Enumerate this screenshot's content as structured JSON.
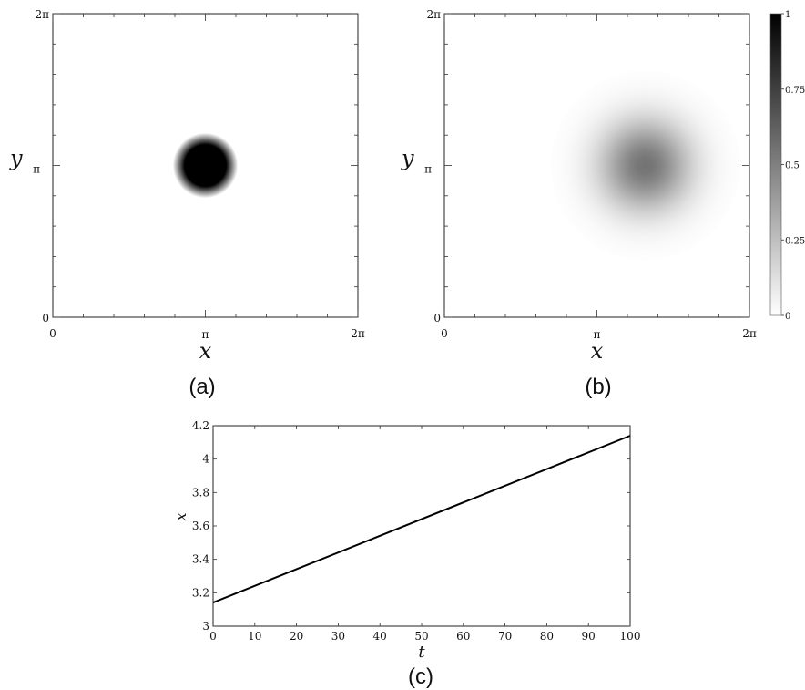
{
  "chart_data": [
    {
      "panel": "(a)",
      "type": "heatmap",
      "xlabel": "x",
      "ylabel": "y",
      "xlim": [
        0,
        6.2832
      ],
      "ylim": [
        0,
        6.2832
      ],
      "xticks": [
        {
          "value": 0,
          "label": "0"
        },
        {
          "value": 3.1416,
          "label": "π"
        },
        {
          "value": 6.2832,
          "label": "2π"
        }
      ],
      "yticks": [
        {
          "value": 0,
          "label": "0"
        },
        {
          "value": 3.1416,
          "label": "π"
        },
        {
          "value": 6.2832,
          "label": "2π"
        }
      ],
      "blob": {
        "center": [
          3.1416,
          3.1416
        ],
        "radius": 0.55,
        "edge": 0.12,
        "peak": 1.0,
        "profile": "disk"
      }
    },
    {
      "panel": "(b)",
      "type": "heatmap",
      "xlabel": "x",
      "ylabel": "y",
      "xlim": [
        0,
        6.2832
      ],
      "ylim": [
        0,
        6.2832
      ],
      "xticks": [
        {
          "value": 0,
          "label": "0"
        },
        {
          "value": 3.1416,
          "label": "π"
        },
        {
          "value": 6.2832,
          "label": "2π"
        }
      ],
      "yticks": [
        {
          "value": 0,
          "label": "0"
        },
        {
          "value": 3.1416,
          "label": "π"
        },
        {
          "value": 6.2832,
          "label": "2π"
        }
      ],
      "blob": {
        "center": [
          4.14,
          3.1416
        ],
        "sigma": 0.65,
        "peak": 0.55,
        "profile": "gaussian"
      },
      "colorbar": {
        "min": 0,
        "max": 1,
        "ticks": [
          {
            "value": 0,
            "label": "0"
          },
          {
            "value": 0.25,
            "label": "0.25"
          },
          {
            "value": 0.5,
            "label": "0.5"
          },
          {
            "value": 0.75,
            "label": "0.75"
          },
          {
            "value": 1,
            "label": "1"
          }
        ]
      }
    },
    {
      "panel": "(c)",
      "type": "line",
      "xlabel": "t",
      "ylabel": "x",
      "xlim": [
        0,
        100
      ],
      "ylim": [
        3,
        4.2
      ],
      "xticks": [
        0,
        10,
        20,
        30,
        40,
        50,
        60,
        70,
        80,
        90,
        100
      ],
      "yticks": [
        3,
        3.2,
        3.4,
        3.6,
        3.8,
        4,
        4.2
      ],
      "series": [
        {
          "x": [
            0,
            100
          ],
          "y": [
            3.1416,
            4.14
          ]
        }
      ]
    }
  ],
  "labels": {
    "a": "(a)",
    "b": "(b)",
    "c": "(c)"
  }
}
